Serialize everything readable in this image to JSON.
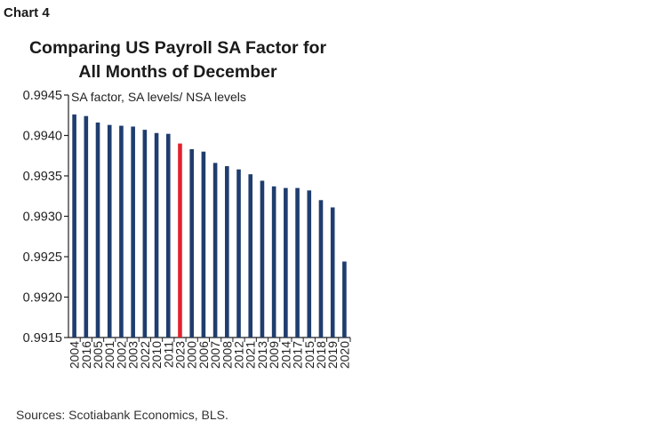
{
  "chart_label": "Chart 4",
  "source": "Sources: Scotiabank Economics, BLS.",
  "colors": {
    "bar": "#1f3d6e",
    "highlight": "#e3212b",
    "axis": "#222222"
  },
  "chart_data": {
    "type": "bar",
    "title": [
      "Comparing US Payroll SA Factor for",
      "All Months of December"
    ],
    "annotation": "SA factor, SA levels/ NSA levels",
    "categories": [
      "2004",
      "2016",
      "2005",
      "2001",
      "2002",
      "2003",
      "2022",
      "2010",
      "2011",
      "2023",
      "2000",
      "2006",
      "2007",
      "2008",
      "2012",
      "2021",
      "2013",
      "2009",
      "2014",
      "2017",
      "2015",
      "2018",
      "2019",
      "2020"
    ],
    "values": [
      0.99426,
      0.99424,
      0.99416,
      0.99413,
      0.99412,
      0.99411,
      0.99407,
      0.99403,
      0.99402,
      0.9939,
      0.99383,
      0.9938,
      0.99366,
      0.99362,
      0.99358,
      0.99352,
      0.99344,
      0.99337,
      0.99335,
      0.99335,
      0.99332,
      0.9932,
      0.99311,
      0.99244
    ],
    "highlight_category": "2023",
    "ylim": [
      0.9915,
      0.9945
    ],
    "yticks": [
      "0.9915",
      "0.9920",
      "0.9925",
      "0.9930",
      "0.9935",
      "0.9940",
      "0.9945"
    ],
    "xlabel": "",
    "ylabel": "",
    "grid": false,
    "legend": "none"
  }
}
